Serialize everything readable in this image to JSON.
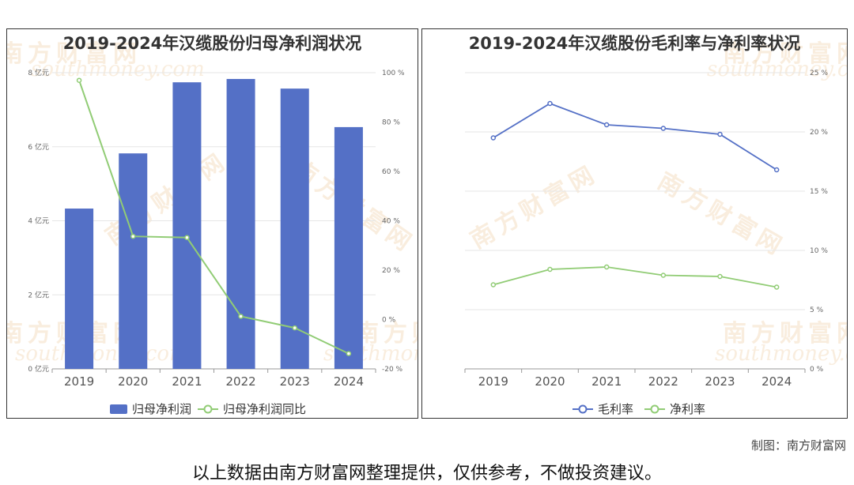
{
  "colors": {
    "bar": "#5470c6",
    "line_green": "#91cc75",
    "line_blue": "#5470c6",
    "grid": "#e6e6e6"
  },
  "watermark": {
    "cn": "南方财富网",
    "en": "southmoney.com"
  },
  "chart_data": [
    {
      "type": "bar",
      "title": "2019-2024年汉缆股份归母净利润状况",
      "categories": [
        "2019",
        "2020",
        "2021",
        "2022",
        "2023",
        "2024"
      ],
      "y_axis_left": {
        "ticks": [
          "0 亿元",
          "2 亿元",
          "4 亿元",
          "6 亿元",
          "8 亿元"
        ],
        "ylim": [
          0,
          8
        ]
      },
      "y_axis_right": {
        "ticks": [
          "-20 %",
          "0 %",
          "20 %",
          "40 %",
          "60 %",
          "80 %",
          "100 %"
        ],
        "ylim": [
          -20,
          100
        ]
      },
      "series": [
        {
          "name": "归母净利润",
          "type": "bar",
          "axis": "left",
          "values": [
            4.33,
            5.82,
            7.74,
            7.83,
            7.57,
            6.53
          ]
        },
        {
          "name": "归母净利润同比",
          "type": "line",
          "axis": "right",
          "values": [
            96.9,
            33.7,
            33.2,
            1.3,
            -3.4,
            -13.8
          ]
        }
      ],
      "grid": true,
      "legend": "bottom"
    },
    {
      "type": "line",
      "title": "2019-2024年汉缆股份毛利率与净利率状况",
      "categories": [
        "2019",
        "2020",
        "2021",
        "2022",
        "2023",
        "2024"
      ],
      "y_axis_right": {
        "ticks": [
          "0 %",
          "5 %",
          "10 %",
          "15 %",
          "20 %",
          "25 %"
        ],
        "ylim": [
          0,
          25
        ]
      },
      "series": [
        {
          "name": "毛利率",
          "values": [
            19.5,
            22.4,
            20.6,
            20.3,
            19.8,
            16.8
          ]
        },
        {
          "name": "净利率",
          "values": [
            7.1,
            8.4,
            8.6,
            7.9,
            7.8,
            6.9
          ]
        }
      ],
      "grid": true,
      "legend": "bottom"
    }
  ],
  "credit": "制图：南方财富网",
  "footer": "以上数据由南方财富网整理提供，仅供参考，不做投资建议。"
}
